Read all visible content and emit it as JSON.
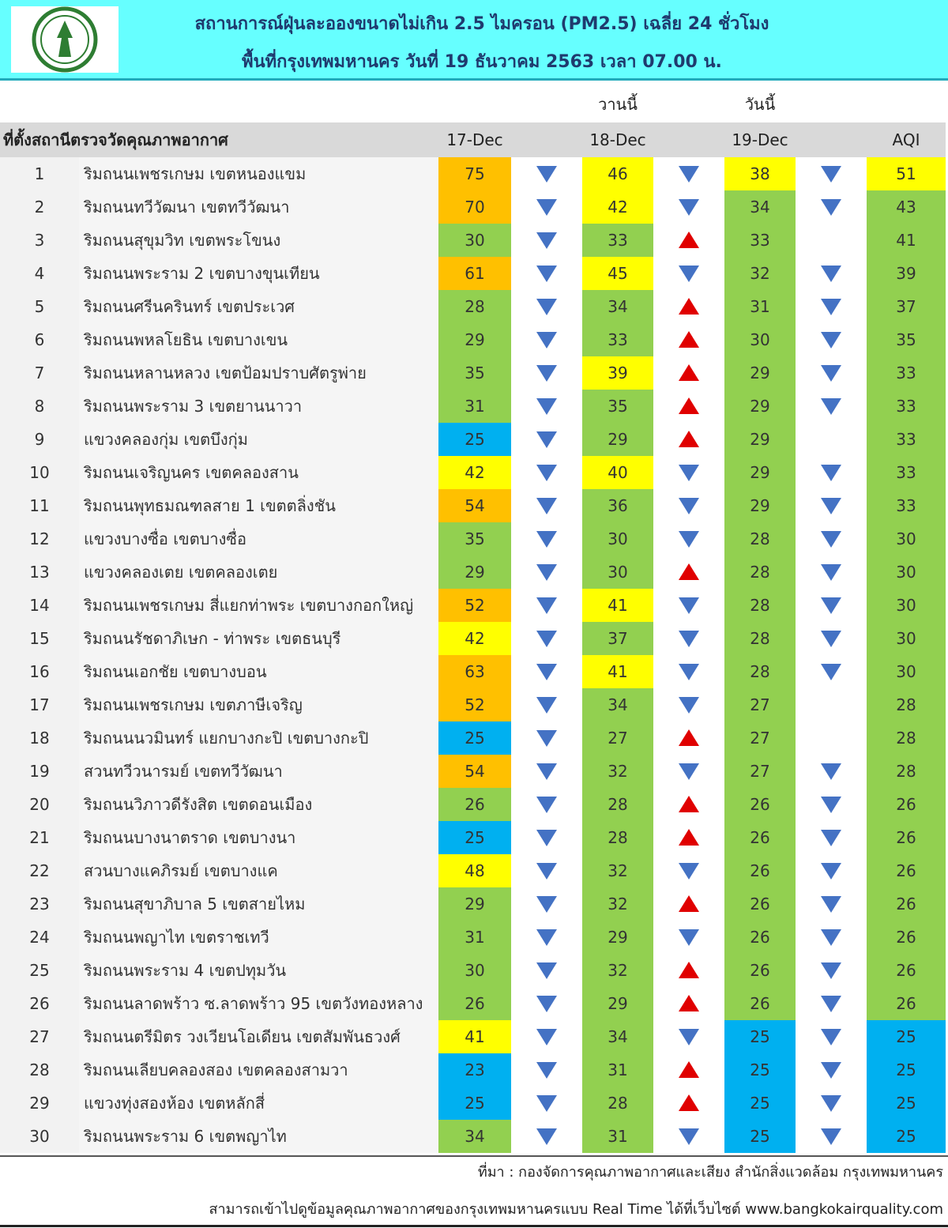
{
  "header": {
    "title": "สถานการณ์ฝุ่นละอองขนาดไม่เกิน 2.5 ไมครอน (PM2.5) เฉลี่ย 24 ชั่วโมง",
    "subtitle": "พื้นที่กรุงเทพมหานคร วันที่ 19 ธันวาคม 2563 เวลา 07.00 น."
  },
  "table": {
    "yesterday_label": "วานนี้",
    "today_label": "วันนี้",
    "columns": [
      "ที่ตั้งสถานีตรวจวัดคุณภาพอากาศ",
      "17-Dec",
      "18-Dec",
      "19-Dec",
      "AQI"
    ],
    "arrow_colors": {
      "down": "#4472c4",
      "up": "#e00000"
    },
    "rows": [
      {
        "no": 1,
        "station": "ริมถนนเพชรเกษม เขตหนองแขม",
        "values": [
          75,
          46,
          38,
          51
        ],
        "colors": [
          "#ffc000",
          "#ffff00",
          "#ffff00",
          "#ffff00"
        ],
        "trends": [
          "down",
          "down",
          "down"
        ]
      },
      {
        "no": 2,
        "station": "ริมถนนทวีวัฒนา เขตทวีวัฒนา",
        "values": [
          70,
          42,
          34,
          43
        ],
        "colors": [
          "#ffc000",
          "#ffff00",
          "#92d050",
          "#92d050"
        ],
        "trends": [
          "down",
          "down",
          "down"
        ]
      },
      {
        "no": 3,
        "station": "ริมถนนสุขุมวิท เขตพระโขนง",
        "values": [
          30,
          33,
          33,
          41
        ],
        "colors": [
          "#92d050",
          "#92d050",
          "#92d050",
          "#92d050"
        ],
        "trends": [
          "down",
          "up",
          null
        ]
      },
      {
        "no": 4,
        "station": "ริมถนนพระราม 2 เขตบางขุนเทียน",
        "values": [
          61,
          45,
          32,
          39
        ],
        "colors": [
          "#ffc000",
          "#ffff00",
          "#92d050",
          "#92d050"
        ],
        "trends": [
          "down",
          "down",
          "down"
        ]
      },
      {
        "no": 5,
        "station": "ริมถนนศรีนครินทร์ เขตประเวศ",
        "values": [
          28,
          34,
          31,
          37
        ],
        "colors": [
          "#92d050",
          "#92d050",
          "#92d050",
          "#92d050"
        ],
        "trends": [
          "down",
          "up",
          "down"
        ]
      },
      {
        "no": 6,
        "station": "ริมถนนพหลโยธิน เขตบางเขน",
        "values": [
          29,
          33,
          30,
          35
        ],
        "colors": [
          "#92d050",
          "#92d050",
          "#92d050",
          "#92d050"
        ],
        "trends": [
          "down",
          "up",
          "down"
        ]
      },
      {
        "no": 7,
        "station": "ริมถนนหลานหลวง เขตป้อมปราบศัตรูพ่าย",
        "values": [
          35,
          39,
          29,
          33
        ],
        "colors": [
          "#92d050",
          "#ffff00",
          "#92d050",
          "#92d050"
        ],
        "trends": [
          "down",
          "up",
          "down"
        ]
      },
      {
        "no": 8,
        "station": "ริมถนนพระราม 3 เขตยานนาวา",
        "values": [
          31,
          35,
          29,
          33
        ],
        "colors": [
          "#92d050",
          "#92d050",
          "#92d050",
          "#92d050"
        ],
        "trends": [
          "down",
          "up",
          "down"
        ]
      },
      {
        "no": 9,
        "station": "แขวงคลองกุ่ม เขตบึงกุ่ม",
        "values": [
          25,
          29,
          29,
          33
        ],
        "colors": [
          "#00b0f0",
          "#92d050",
          "#92d050",
          "#92d050"
        ],
        "trends": [
          "down",
          "up",
          null
        ]
      },
      {
        "no": 10,
        "station": "ริมถนนเจริญนคร เขตคลองสาน",
        "values": [
          42,
          40,
          29,
          33
        ],
        "colors": [
          "#ffff00",
          "#ffff00",
          "#92d050",
          "#92d050"
        ],
        "trends": [
          "down",
          "down",
          "down"
        ]
      },
      {
        "no": 11,
        "station": "ริมถนนพุทธมณฑลสาย 1 เขตตลิ่งชัน",
        "values": [
          54,
          36,
          29,
          33
        ],
        "colors": [
          "#ffc000",
          "#92d050",
          "#92d050",
          "#92d050"
        ],
        "trends": [
          "down",
          "down",
          "down"
        ]
      },
      {
        "no": 12,
        "station": "แขวงบางซื่อ เขตบางซื่อ",
        "values": [
          35,
          30,
          28,
          30
        ],
        "colors": [
          "#92d050",
          "#92d050",
          "#92d050",
          "#92d050"
        ],
        "trends": [
          "down",
          "down",
          "down"
        ]
      },
      {
        "no": 13,
        "station": "แขวงคลองเตย เขตคลองเตย",
        "values": [
          29,
          30,
          28,
          30
        ],
        "colors": [
          "#92d050",
          "#92d050",
          "#92d050",
          "#92d050"
        ],
        "trends": [
          "down",
          "up",
          "down"
        ]
      },
      {
        "no": 14,
        "station": "ริมถนนเพชรเกษม สี่แยกท่าพระ เขตบางกอกใหญ่",
        "values": [
          52,
          41,
          28,
          30
        ],
        "colors": [
          "#ffc000",
          "#ffff00",
          "#92d050",
          "#92d050"
        ],
        "trends": [
          "down",
          "down",
          "down"
        ]
      },
      {
        "no": 15,
        "station": "ริมถนนรัชดาภิเษก - ท่าพระ เขตธนบุรี",
        "values": [
          42,
          37,
          28,
          30
        ],
        "colors": [
          "#ffff00",
          "#92d050",
          "#92d050",
          "#92d050"
        ],
        "trends": [
          "down",
          "down",
          "down"
        ]
      },
      {
        "no": 16,
        "station": "ริมถนนเอกชัย เขตบางบอน",
        "values": [
          63,
          41,
          28,
          30
        ],
        "colors": [
          "#ffc000",
          "#ffff00",
          "#92d050",
          "#92d050"
        ],
        "trends": [
          "down",
          "down",
          "down"
        ]
      },
      {
        "no": 17,
        "station": "ริมถนนเพชรเกษม เขตภาษีเจริญ",
        "values": [
          52,
          34,
          27,
          28
        ],
        "colors": [
          "#ffc000",
          "#92d050",
          "#92d050",
          "#92d050"
        ],
        "trends": [
          "down",
          "down",
          null
        ]
      },
      {
        "no": 18,
        "station": "ริมถนนนวมินทร์ แยกบางกะปิ เขตบางกะปิ",
        "values": [
          25,
          27,
          27,
          28
        ],
        "colors": [
          "#00b0f0",
          "#92d050",
          "#92d050",
          "#92d050"
        ],
        "trends": [
          "down",
          "up",
          null
        ]
      },
      {
        "no": 19,
        "station": "สวนทวีวนารมย์ เขตทวีวัฒนา",
        "values": [
          54,
          32,
          27,
          28
        ],
        "colors": [
          "#ffc000",
          "#92d050",
          "#92d050",
          "#92d050"
        ],
        "trends": [
          "down",
          "down",
          "down"
        ]
      },
      {
        "no": 20,
        "station": "ริมถนนวิภาวดีรังสิต เขตดอนเมือง",
        "values": [
          26,
          28,
          26,
          26
        ],
        "colors": [
          "#92d050",
          "#92d050",
          "#92d050",
          "#92d050"
        ],
        "trends": [
          "down",
          "up",
          "down"
        ]
      },
      {
        "no": 21,
        "station": "ริมถนนบางนาตราด เขตบางนา",
        "values": [
          25,
          28,
          26,
          26
        ],
        "colors": [
          "#00b0f0",
          "#92d050",
          "#92d050",
          "#92d050"
        ],
        "trends": [
          "down",
          "up",
          "down"
        ]
      },
      {
        "no": 22,
        "station": "สวนบางแคภิรมย์ เขตบางแค",
        "values": [
          48,
          32,
          26,
          26
        ],
        "colors": [
          "#ffff00",
          "#92d050",
          "#92d050",
          "#92d050"
        ],
        "trends": [
          "down",
          "down",
          "down"
        ]
      },
      {
        "no": 23,
        "station": "ริมถนนสุขาภิบาล 5 เขตสายไหม",
        "values": [
          29,
          32,
          26,
          26
        ],
        "colors": [
          "#92d050",
          "#92d050",
          "#92d050",
          "#92d050"
        ],
        "trends": [
          "down",
          "up",
          "down"
        ]
      },
      {
        "no": 24,
        "station": "ริมถนนพญาไท เขตราชเทวี",
        "values": [
          31,
          29,
          26,
          26
        ],
        "colors": [
          "#92d050",
          "#92d050",
          "#92d050",
          "#92d050"
        ],
        "trends": [
          "down",
          "down",
          "down"
        ]
      },
      {
        "no": 25,
        "station": "ริมถนนพระราม 4 เขตปทุมวัน",
        "values": [
          30,
          32,
          26,
          26
        ],
        "colors": [
          "#92d050",
          "#92d050",
          "#92d050",
          "#92d050"
        ],
        "trends": [
          "down",
          "up",
          "down"
        ]
      },
      {
        "no": 26,
        "station": "ริมถนนลาดพร้าว ซ.ลาดพร้าว 95 เขตวังทองหลาง",
        "values": [
          26,
          29,
          26,
          26
        ],
        "colors": [
          "#92d050",
          "#92d050",
          "#92d050",
          "#92d050"
        ],
        "trends": [
          "down",
          "up",
          "down"
        ]
      },
      {
        "no": 27,
        "station": "ริมถนนตรีมิตร วงเวียนโอเดียน เขตสัมพันธวงศ์",
        "values": [
          41,
          34,
          25,
          25
        ],
        "colors": [
          "#ffff00",
          "#92d050",
          "#00b0f0",
          "#00b0f0"
        ],
        "trends": [
          "down",
          "down",
          "down"
        ]
      },
      {
        "no": 28,
        "station": "ริมถนนเลียบคลองสอง เขตคลองสามวา",
        "values": [
          23,
          31,
          25,
          25
        ],
        "colors": [
          "#00b0f0",
          "#92d050",
          "#00b0f0",
          "#00b0f0"
        ],
        "trends": [
          "down",
          "up",
          "down"
        ]
      },
      {
        "no": 29,
        "station": "แขวงทุ่งสองห้อง เขตหลักสี่",
        "values": [
          25,
          28,
          25,
          25
        ],
        "colors": [
          "#00b0f0",
          "#92d050",
          "#00b0f0",
          "#00b0f0"
        ],
        "trends": [
          "down",
          "up",
          "down"
        ]
      },
      {
        "no": 30,
        "station": "ริมถนนพระราม 6 เขตพญาไท",
        "values": [
          34,
          31,
          25,
          25
        ],
        "colors": [
          "#92d050",
          "#92d050",
          "#00b0f0",
          "#00b0f0"
        ],
        "trends": [
          "down",
          "down",
          "down"
        ]
      }
    ]
  },
  "footer": {
    "source": "ที่มา : กองจัดการคุณภาพอากาศและเสียง สำนักสิ่งแวดล้อม กรุงเทพมหานคร",
    "website": "สามารถเข้าไปดูข้อมูลคุณภาพอากาศของกรุงเทพมหานครแบบ Real Time ได้ที่เว็บไซต์ www.bangkokairquality.com"
  }
}
